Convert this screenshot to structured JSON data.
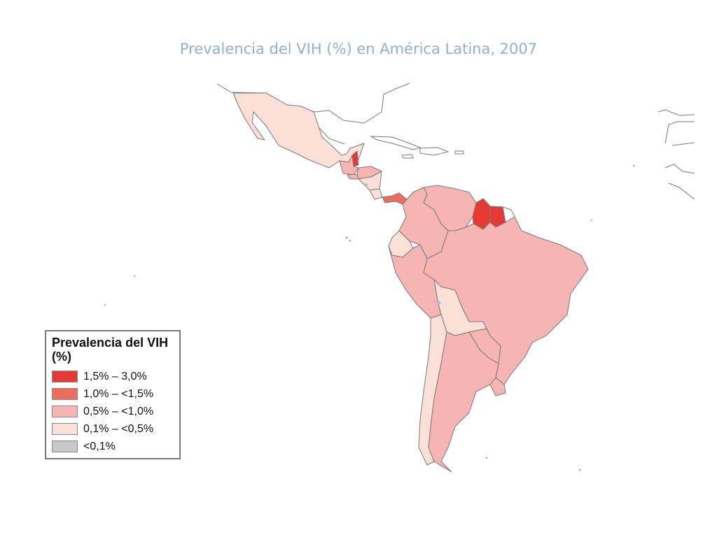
{
  "title": "Prevalencia del VIH (%) en América Latina, 2007",
  "legend": {
    "title": "Prevalencia del VIH (%)",
    "items": [
      {
        "label": "1,5% – 3,0%",
        "color": "#e53935"
      },
      {
        "label": "1,0% – <1,5%",
        "color": "#ee6c5e"
      },
      {
        "label": "0,5% – <1,0%",
        "color": "#f6b5b3"
      },
      {
        "label": "0,1% – <0,5%",
        "color": "#fbe0d8"
      },
      {
        "label": "<0,1%",
        "color": "#c8c8c8"
      }
    ]
  },
  "colors": {
    "border": "#7a7a7a",
    "no_data": "#ffffff",
    "water_marker": "#9ec3ea"
  },
  "countries": [
    {
      "name": "Mexico",
      "category": "0,1% – <0,5%"
    },
    {
      "name": "Belize",
      "category": "1,5% – 3,0%"
    },
    {
      "name": "Guatemala",
      "category": "0,5% – <1,0%"
    },
    {
      "name": "Honduras",
      "category": "0,5% – <1,0%"
    },
    {
      "name": "El Salvador",
      "category": "0,5% – <1,0%"
    },
    {
      "name": "Nicaragua",
      "category": "0,1% – <0,5%"
    },
    {
      "name": "Costa Rica",
      "category": "0,1% – <0,5%"
    },
    {
      "name": "Panama",
      "category": "1,0% – <1,5%"
    },
    {
      "name": "Colombia",
      "category": "0,5% – <1,0%"
    },
    {
      "name": "Venezuela",
      "category": "0,5% – <1,0%"
    },
    {
      "name": "Guyana",
      "category": "1,5% – 3,0%"
    },
    {
      "name": "Suriname",
      "category": "1,5% – 3,0%"
    },
    {
      "name": "Ecuador",
      "category": "0,1% – <0,5%"
    },
    {
      "name": "Peru",
      "category": "0,5% – <1,0%"
    },
    {
      "name": "Brazil",
      "category": "0,5% – <1,0%"
    },
    {
      "name": "Bolivia",
      "category": "0,1% – <0,5%"
    },
    {
      "name": "Paraguay",
      "category": "0,5% – <1,0%"
    },
    {
      "name": "Chile",
      "category": "0,1% – <0,5%"
    },
    {
      "name": "Argentina",
      "category": "0,5% – <1,0%"
    },
    {
      "name": "Uruguay",
      "category": "0,5% – <1,0%"
    }
  ]
}
